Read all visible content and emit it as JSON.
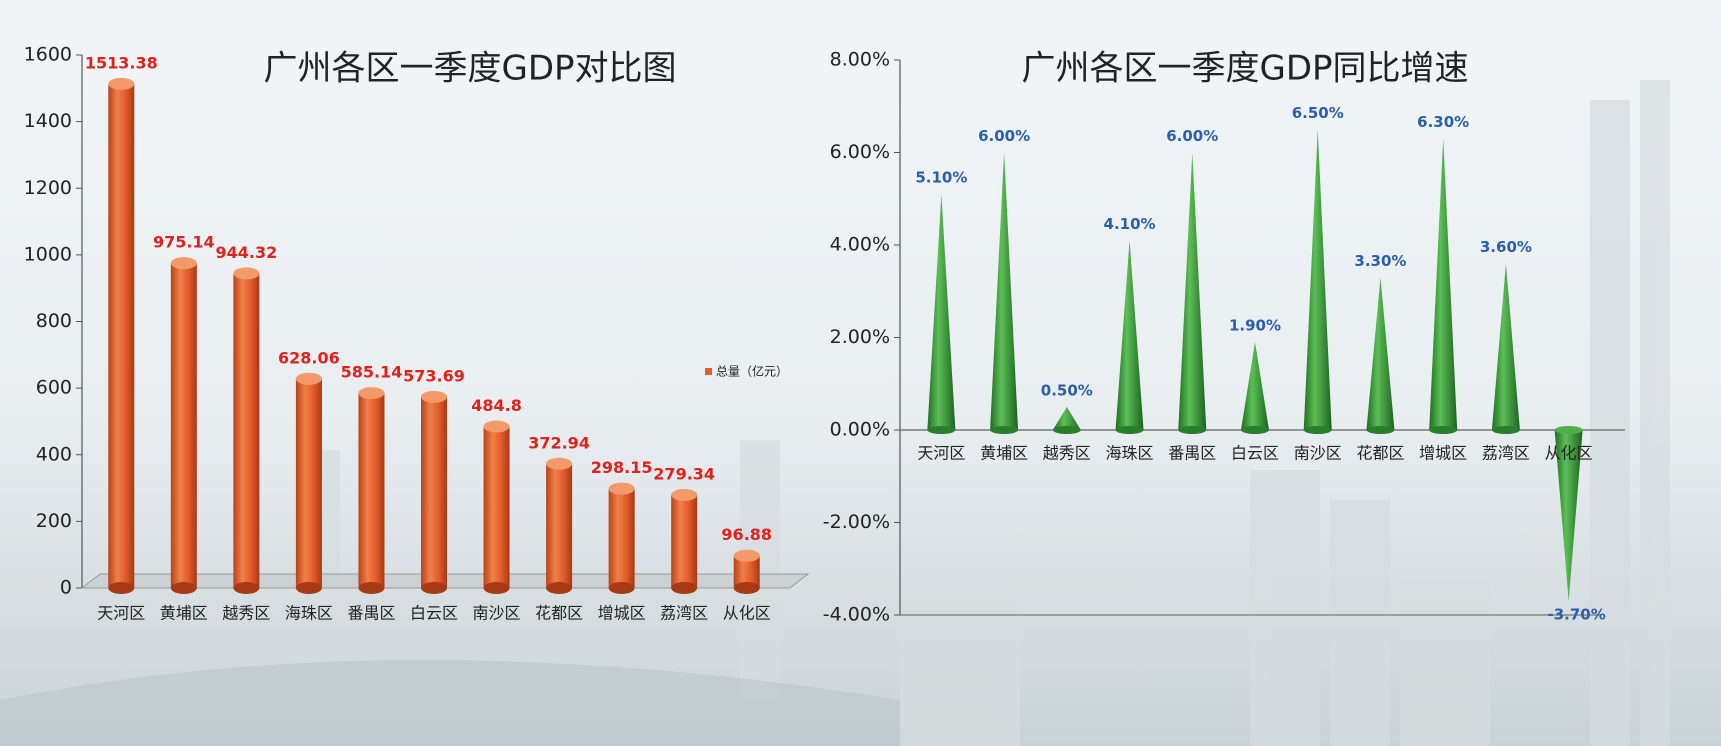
{
  "chart_data": [
    {
      "type": "bar",
      "title": "广州各区一季度GDP对比图",
      "categories": [
        "天河区",
        "黄埔区",
        "越秀区",
        "海珠区",
        "番禺区",
        "白云区",
        "南沙区",
        "花都区",
        "增城区",
        "荔湾区",
        "从化区"
      ],
      "series": [
        {
          "name": "总量（亿元）",
          "color": "#e4602a",
          "values": [
            1513.38,
            975.14,
            944.32,
            628.06,
            585.14,
            573.69,
            484.8,
            372.94,
            298.15,
            279.34,
            96.88
          ]
        }
      ],
      "ylim": [
        0,
        1600
      ],
      "yticks": [
        0,
        200,
        400,
        600,
        800,
        1000,
        1200,
        1400,
        1600
      ]
    },
    {
      "type": "cone",
      "title": "广州各区一季度GDP同比增速",
      "categories": [
        "天河区",
        "黄埔区",
        "越秀区",
        "海珠区",
        "番禺区",
        "白云区",
        "南沙区",
        "花都区",
        "增城区",
        "荔湾区",
        "从化区"
      ],
      "values": [
        5.1,
        6.0,
        0.5,
        4.1,
        6.0,
        1.9,
        6.5,
        3.3,
        6.3,
        3.6,
        -3.7
      ],
      "value_labels": [
        "5.10%",
        "6.00%",
        "0.50%",
        "4.10%",
        "6.00%",
        "1.90%",
        "6.50%",
        "3.30%",
        "6.30%",
        "3.60%",
        "-3.70%"
      ],
      "color": "#3c9a3a",
      "ylim": [
        -4,
        8
      ],
      "yticks": [
        {
          "value": -4,
          "label": "-4.00%"
        },
        {
          "value": -2,
          "label": "-2.00%"
        },
        {
          "value": 0,
          "label": "0.00%"
        },
        {
          "value": 2,
          "label": "2.00%"
        },
        {
          "value": 4,
          "label": "4.00%"
        },
        {
          "value": 6,
          "label": "6.00%"
        },
        {
          "value": 8,
          "label": "8.00%"
        }
      ]
    }
  ]
}
